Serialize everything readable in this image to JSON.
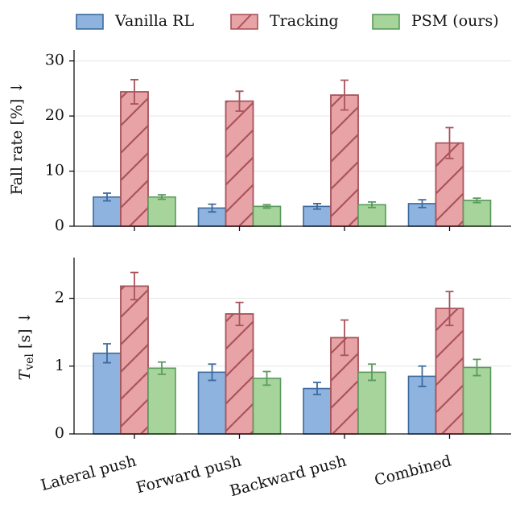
{
  "chart_data": [
    {
      "type": "bar",
      "ylabel": "Fall rate [%] ↓",
      "categories": [
        null,
        null,
        null,
        null
      ],
      "ylim": [
        0,
        32
      ],
      "yticks": [
        0,
        10,
        20,
        30
      ],
      "grid": true,
      "series": [
        {
          "name": "Vanilla RL",
          "color": "#8eb3de",
          "edge": "#3d6a9e",
          "values": [
            5.3,
            3.3,
            3.6,
            4.1
          ],
          "errors": [
            0.7,
            0.7,
            0.5,
            0.7
          ]
        },
        {
          "name": "Tracking",
          "color": "#e8a3a6",
          "edge": "#a8545b",
          "hatch": "/",
          "values": [
            24.4,
            22.7,
            23.8,
            15.1
          ],
          "errors": [
            2.2,
            1.8,
            2.7,
            2.8
          ]
        },
        {
          "name": "PSM (ours)",
          "color": "#a6d49a",
          "edge": "#5a9a5c",
          "values": [
            5.3,
            3.6,
            3.9,
            4.7
          ],
          "errors": [
            0.4,
            0.3,
            0.5,
            0.4
          ]
        }
      ]
    },
    {
      "type": "bar",
      "ylabel": {
        "main": "T",
        "sub": "vel",
        "unit": "[s] ↓"
      },
      "categories": [
        "Lateral push",
        "Forward push",
        "Backward push",
        "Combined"
      ],
      "ylim": [
        0,
        2.6
      ],
      "yticks": [
        0,
        1,
        2
      ],
      "grid": true,
      "series": [
        {
          "color": "#8eb3de",
          "edge": "#3d6a9e",
          "values": [
            1.19,
            0.91,
            0.67,
            0.85
          ],
          "errors": [
            0.14,
            0.12,
            0.09,
            0.15
          ]
        },
        {
          "color": "#e8a3a6",
          "edge": "#a8545b",
          "hatch": "/",
          "values": [
            2.18,
            1.77,
            1.42,
            1.85
          ],
          "errors": [
            0.2,
            0.17,
            0.26,
            0.25
          ]
        },
        {
          "color": "#a6d49a",
          "edge": "#5a9a5c",
          "values": [
            0.97,
            0.82,
            0.91,
            0.98
          ],
          "errors": [
            0.09,
            0.1,
            0.12,
            0.12
          ]
        }
      ]
    }
  ]
}
